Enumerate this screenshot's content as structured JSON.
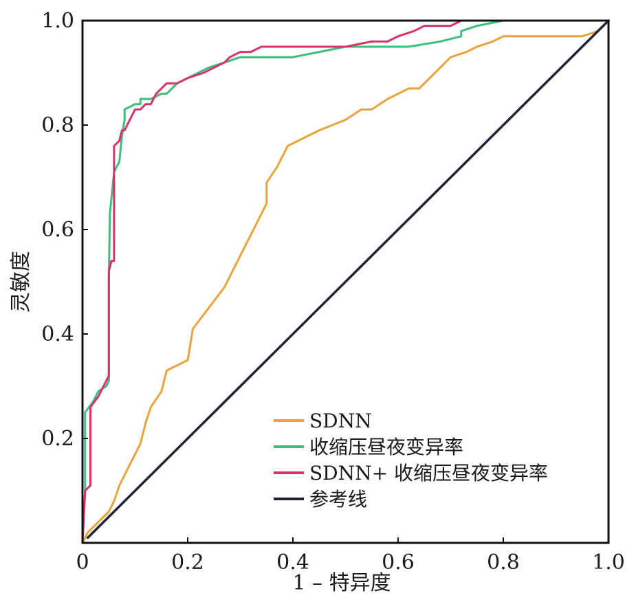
{
  "chart_data": {
    "type": "line",
    "title": "",
    "xlabel": "1 – 特异度",
    "ylabel": "灵敏度",
    "xlim": [
      0,
      1.0
    ],
    "ylim": [
      0,
      1.0
    ],
    "x_ticks": [
      "0",
      "0.2",
      "0.4",
      "0.6",
      "0.8",
      "1.0"
    ],
    "y_ticks": [
      "0.2",
      "0.4",
      "0.6",
      "0.8",
      "1.0"
    ],
    "grid": false,
    "legend_position": "bottom-right",
    "series": [
      {
        "name": "SDNN",
        "color": "#E8A33A",
        "x": [
          0,
          0.01,
          0.02,
          0.04,
          0.05,
          0.06,
          0.07,
          0.08,
          0.1,
          0.11,
          0.12,
          0.13,
          0.15,
          0.16,
          0.18,
          0.2,
          0.21,
          0.24,
          0.27,
          0.3,
          0.33,
          0.35,
          0.35,
          0.37,
          0.39,
          0.45,
          0.5,
          0.53,
          0.55,
          0.58,
          0.62,
          0.64,
          0.67,
          0.7,
          0.73,
          0.75,
          0.78,
          0.8,
          0.85,
          0.9,
          0.95,
          0.98,
          1.0
        ],
        "y": [
          0,
          0.02,
          0.03,
          0.05,
          0.06,
          0.08,
          0.11,
          0.13,
          0.17,
          0.19,
          0.23,
          0.26,
          0.29,
          0.33,
          0.34,
          0.35,
          0.41,
          0.45,
          0.49,
          0.55,
          0.61,
          0.65,
          0.69,
          0.72,
          0.76,
          0.79,
          0.81,
          0.83,
          0.83,
          0.85,
          0.87,
          0.87,
          0.9,
          0.93,
          0.94,
          0.95,
          0.96,
          0.97,
          0.97,
          0.97,
          0.97,
          0.98,
          1.0
        ]
      },
      {
        "name": "收缩压昼夜变异率",
        "color": "#3DBE7A",
        "x": [
          0,
          0.005,
          0.005,
          0.02,
          0.03,
          0.045,
          0.05,
          0.05,
          0.052,
          0.06,
          0.07,
          0.075,
          0.08,
          0.08,
          0.1,
          0.11,
          0.11,
          0.13,
          0.15,
          0.16,
          0.17,
          0.18,
          0.2,
          0.22,
          0.24,
          0.27,
          0.3,
          0.35,
          0.4,
          0.45,
          0.5,
          0.55,
          0.62,
          0.68,
          0.72,
          0.72,
          0.75,
          0.8,
          0.85,
          1.0
        ],
        "y": [
          0,
          0.1,
          0.25,
          0.27,
          0.29,
          0.3,
          0.31,
          0.5,
          0.63,
          0.71,
          0.73,
          0.78,
          0.81,
          0.83,
          0.84,
          0.84,
          0.85,
          0.85,
          0.86,
          0.86,
          0.87,
          0.88,
          0.89,
          0.9,
          0.91,
          0.92,
          0.93,
          0.93,
          0.93,
          0.94,
          0.95,
          0.95,
          0.95,
          0.96,
          0.97,
          0.98,
          0.99,
          1.0,
          1.0,
          1.0
        ]
      },
      {
        "name": "SDNN+ 收缩压昼夜变异率",
        "color": "#D6336C",
        "x": [
          0,
          0.005,
          0.015,
          0.015,
          0.03,
          0.04,
          0.05,
          0.05,
          0.055,
          0.06,
          0.06,
          0.07,
          0.075,
          0.08,
          0.085,
          0.1,
          0.11,
          0.12,
          0.13,
          0.14,
          0.15,
          0.16,
          0.18,
          0.2,
          0.23,
          0.25,
          0.27,
          0.28,
          0.3,
          0.32,
          0.34,
          0.38,
          0.45,
          0.5,
          0.55,
          0.58,
          0.6,
          0.63,
          0.65,
          0.7,
          0.72,
          0.73,
          0.75,
          0.8,
          1.0
        ],
        "y": [
          0,
          0.1,
          0.11,
          0.26,
          0.28,
          0.3,
          0.32,
          0.52,
          0.54,
          0.54,
          0.76,
          0.77,
          0.79,
          0.79,
          0.8,
          0.83,
          0.83,
          0.84,
          0.84,
          0.86,
          0.87,
          0.88,
          0.88,
          0.89,
          0.9,
          0.91,
          0.92,
          0.93,
          0.94,
          0.94,
          0.95,
          0.95,
          0.95,
          0.95,
          0.96,
          0.96,
          0.97,
          0.98,
          0.99,
          0.99,
          1.0,
          1.0,
          1.0,
          1.0,
          1.0
        ]
      },
      {
        "name": "参考线",
        "color": "#1E2233",
        "x": [
          0.01,
          1.0
        ],
        "y": [
          0.01,
          1.0
        ]
      }
    ]
  }
}
